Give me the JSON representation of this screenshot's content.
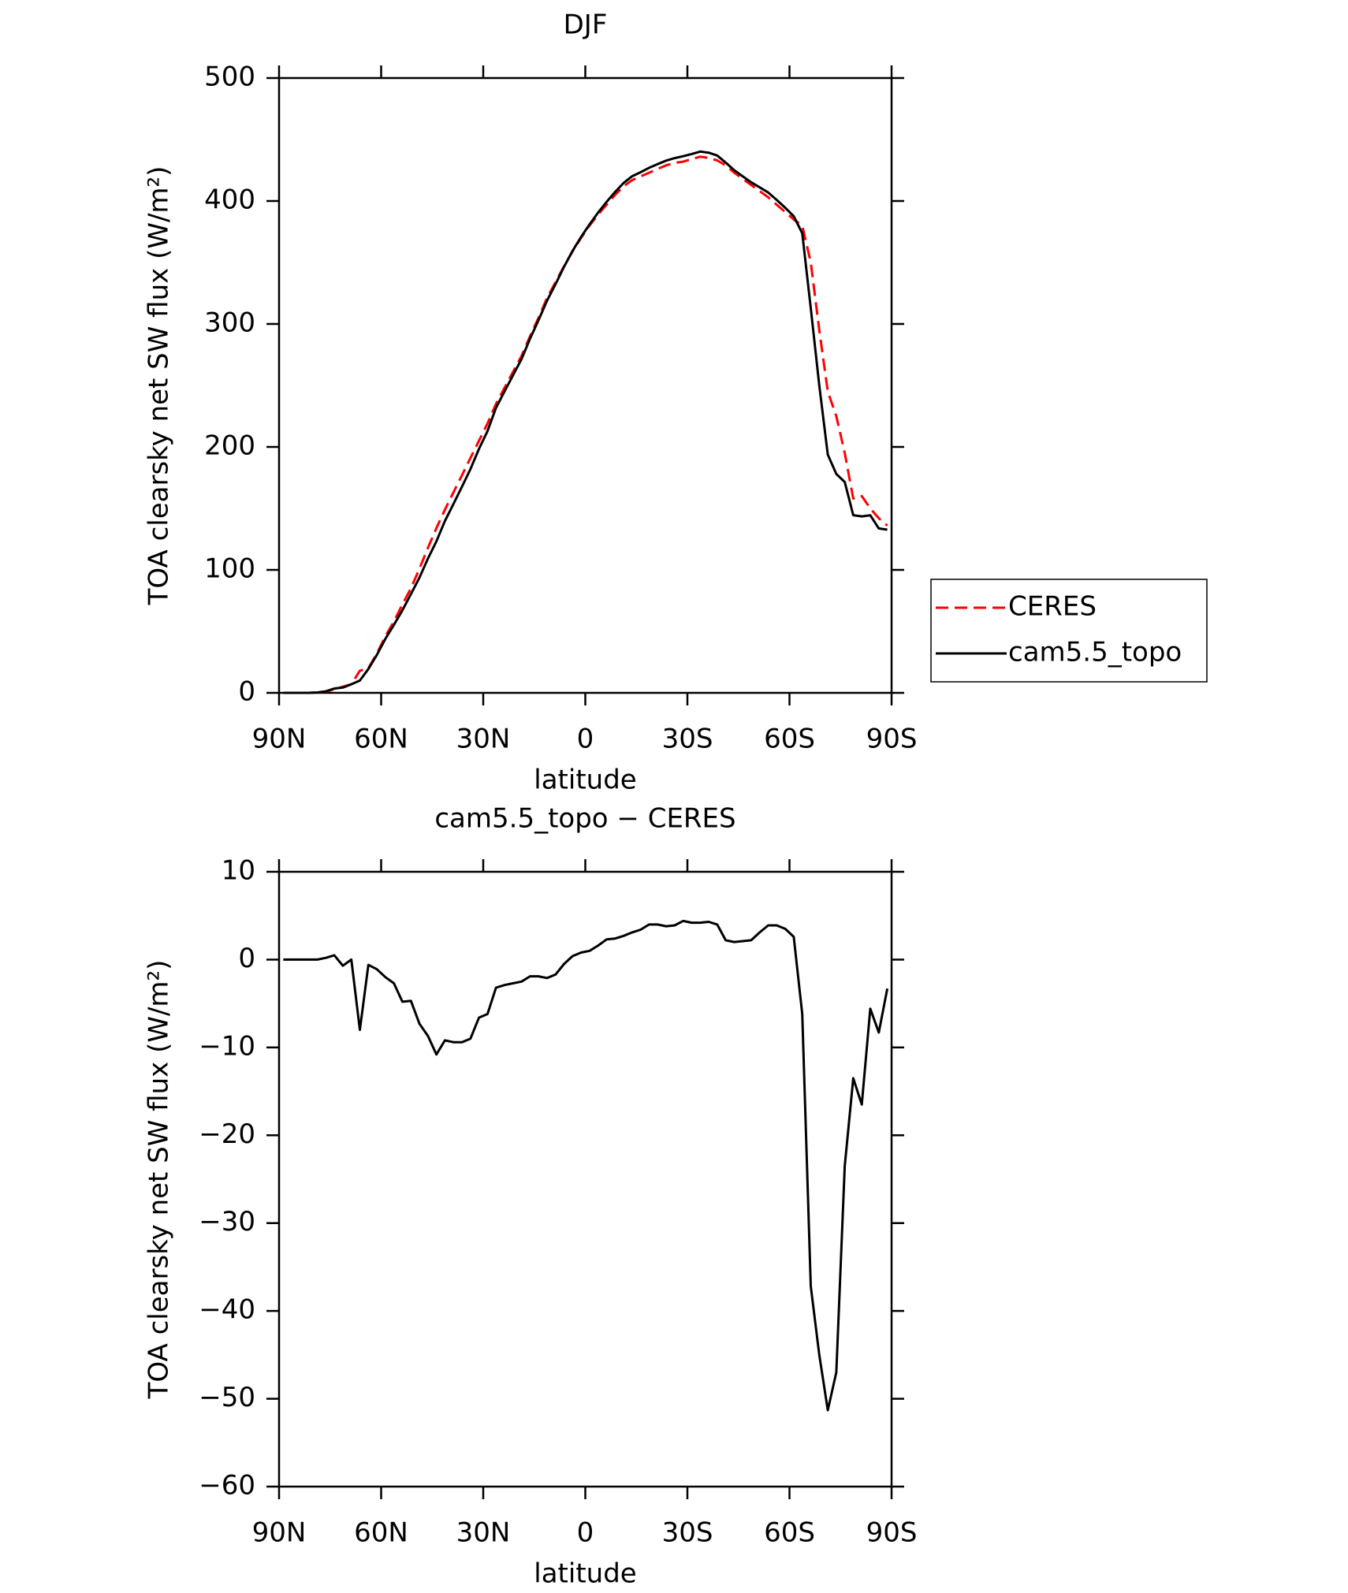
{
  "chart_data": [
    {
      "type": "line",
      "title": "DJF",
      "xlabel": "latitude",
      "ylabel": "TOA clearsky net SW flux (W/m²)",
      "x": [
        88.75,
        86.25,
        83.75,
        81.25,
        78.75,
        76.25,
        73.75,
        71.25,
        68.75,
        66.25,
        63.75,
        61.25,
        58.75,
        56.25,
        53.75,
        51.25,
        48.75,
        46.25,
        43.75,
        41.25,
        38.75,
        36.25,
        33.75,
        31.25,
        28.75,
        26.25,
        23.75,
        21.25,
        18.75,
        16.25,
        13.75,
        11.25,
        8.75,
        6.25,
        3.75,
        1.25,
        -1.25,
        -3.75,
        -6.25,
        -8.75,
        -11.25,
        -13.75,
        -16.25,
        -18.75,
        -21.25,
        -23.75,
        -26.25,
        -28.75,
        -31.25,
        -33.75,
        -36.25,
        -38.75,
        -41.25,
        -43.75,
        -46.25,
        -48.75,
        -51.25,
        -53.75,
        -56.25,
        -58.75,
        -61.25,
        -63.75,
        -66.25,
        -68.75,
        -71.25,
        -73.75,
        -76.25,
        -78.75,
        -81.25,
        -83.75,
        -86.25,
        -88.75
      ],
      "xlim": [
        90,
        -90
      ],
      "xticks": [
        {
          "value": 90,
          "label": "90N"
        },
        {
          "value": 60,
          "label": "60N"
        },
        {
          "value": 30,
          "label": "30N"
        },
        0,
        {
          "value": -30,
          "label": "30S"
        },
        {
          "value": -60,
          "label": "60S"
        },
        {
          "value": -90,
          "label": "90S"
        }
      ],
      "ylim": [
        0,
        500
      ],
      "yticks": [
        0,
        100,
        200,
        300,
        400,
        500
      ],
      "legend": "right",
      "series": [
        {
          "name": "CERES",
          "color": "#ff0000",
          "style": "dashed",
          "values": [
            0,
            0,
            0,
            0,
            0.3,
            1,
            3,
            5,
            7,
            18,
            20,
            32,
            46,
            58,
            72,
            85,
            101,
            118,
            134,
            149,
            163,
            177,
            191,
            205,
            219,
            235,
            248,
            261,
            274,
            290,
            305,
            321,
            334,
            347,
            359,
            370,
            380,
            389,
            397,
            405,
            412,
            417,
            420,
            423,
            426,
            429,
            431,
            432,
            434,
            436,
            435,
            433,
            429,
            423,
            418,
            413,
            408,
            403,
            397,
            391,
            385,
            380,
            350,
            295,
            245,
            225,
            195,
            158,
            160,
            150,
            142,
            136
          ]
        },
        {
          "name": "cam5.5_topo",
          "color": "#000000",
          "style": "solid",
          "values": [
            0,
            0,
            0,
            0,
            0.3,
            1.2,
            3.5,
            4.3,
            7,
            10,
            19.4,
            30.9,
            44,
            55.3,
            67.2,
            80.3,
            93.7,
            109.3,
            123.2,
            139.8,
            153.6,
            167.6,
            182,
            198.4,
            212.8,
            231.8,
            245.1,
            258.3,
            271.5,
            288.1,
            303.1,
            318.9,
            332.3,
            346.5,
            359.4,
            370.8,
            381,
            390.6,
            399.3,
            407.4,
            414.7,
            420.1,
            423.4,
            427,
            430,
            432.8,
            434.9,
            436.4,
            438.2,
            440.2,
            439.3,
            437,
            431.2,
            425,
            420.1,
            415.2,
            411.1,
            406.9,
            400.9,
            394.5,
            387.6,
            373.8,
            312.8,
            250,
            193.7,
            178,
            171.5,
            144.5,
            143.5,
            144.4,
            133.7,
            132.7
          ]
        }
      ]
    },
    {
      "type": "line",
      "title": "cam5.5_topo − CERES",
      "xlabel": "latitude",
      "ylabel": "TOA clearsky net SW flux (W/m²)",
      "x": [
        88.75,
        86.25,
        83.75,
        81.25,
        78.75,
        76.25,
        73.75,
        71.25,
        68.75,
        66.25,
        63.75,
        61.25,
        58.75,
        56.25,
        53.75,
        51.25,
        48.75,
        46.25,
        43.75,
        41.25,
        38.75,
        36.25,
        33.75,
        31.25,
        28.75,
        26.25,
        23.75,
        21.25,
        18.75,
        16.25,
        13.75,
        11.25,
        8.75,
        6.25,
        3.75,
        1.25,
        -1.25,
        -3.75,
        -6.25,
        -8.75,
        -11.25,
        -13.75,
        -16.25,
        -18.75,
        -21.25,
        -23.75,
        -26.25,
        -28.75,
        -31.25,
        -33.75,
        -36.25,
        -38.75,
        -41.25,
        -43.75,
        -46.25,
        -48.75,
        -51.25,
        -53.75,
        -56.25,
        -58.75,
        -61.25,
        -63.75,
        -66.25,
        -68.75,
        -71.25,
        -73.75,
        -76.25,
        -78.75,
        -81.25,
        -83.75,
        -86.25,
        -88.75
      ],
      "xlim": [
        90,
        -90
      ],
      "xticks": [
        {
          "value": 90,
          "label": "90N"
        },
        {
          "value": 60,
          "label": "60N"
        },
        {
          "value": 30,
          "label": "30N"
        },
        0,
        {
          "value": -30,
          "label": "30S"
        },
        {
          "value": -60,
          "label": "60S"
        },
        {
          "value": -90,
          "label": "90S"
        }
      ],
      "ylim": [
        -60,
        10
      ],
      "yticks": [
        {
          "value": -60,
          "label": "−60"
        },
        {
          "value": -50,
          "label": "−50"
        },
        {
          "value": -40,
          "label": "−40"
        },
        {
          "value": -30,
          "label": "−30"
        },
        {
          "value": -20,
          "label": "−20"
        },
        {
          "value": -10,
          "label": "−10"
        },
        0,
        10
      ],
      "series": [
        {
          "color": "#000000",
          "style": "solid",
          "values": [
            0,
            0,
            0,
            0,
            0,
            0.2,
            0.5,
            -0.7,
            0,
            -8,
            -0.6,
            -1.1,
            -2,
            -2.7,
            -4.8,
            -4.7,
            -7.3,
            -8.7,
            -10.8,
            -9.2,
            -9.4,
            -9.4,
            -9,
            -6.6,
            -6.2,
            -3.2,
            -2.9,
            -2.7,
            -2.5,
            -1.9,
            -1.9,
            -2.1,
            -1.7,
            -0.5,
            0.4,
            0.8,
            1,
            1.6,
            2.3,
            2.4,
            2.7,
            3.1,
            3.4,
            4,
            4,
            3.8,
            3.9,
            4.4,
            4.2,
            4.2,
            4.3,
            4,
            2.2,
            2,
            2.1,
            2.2,
            3.1,
            3.9,
            3.9,
            3.5,
            2.6,
            -6.2,
            -37.2,
            -45,
            -51.3,
            -47,
            -23.5,
            -13.5,
            -16.5,
            -5.6,
            -8.3,
            -3.3
          ]
        }
      ]
    }
  ]
}
